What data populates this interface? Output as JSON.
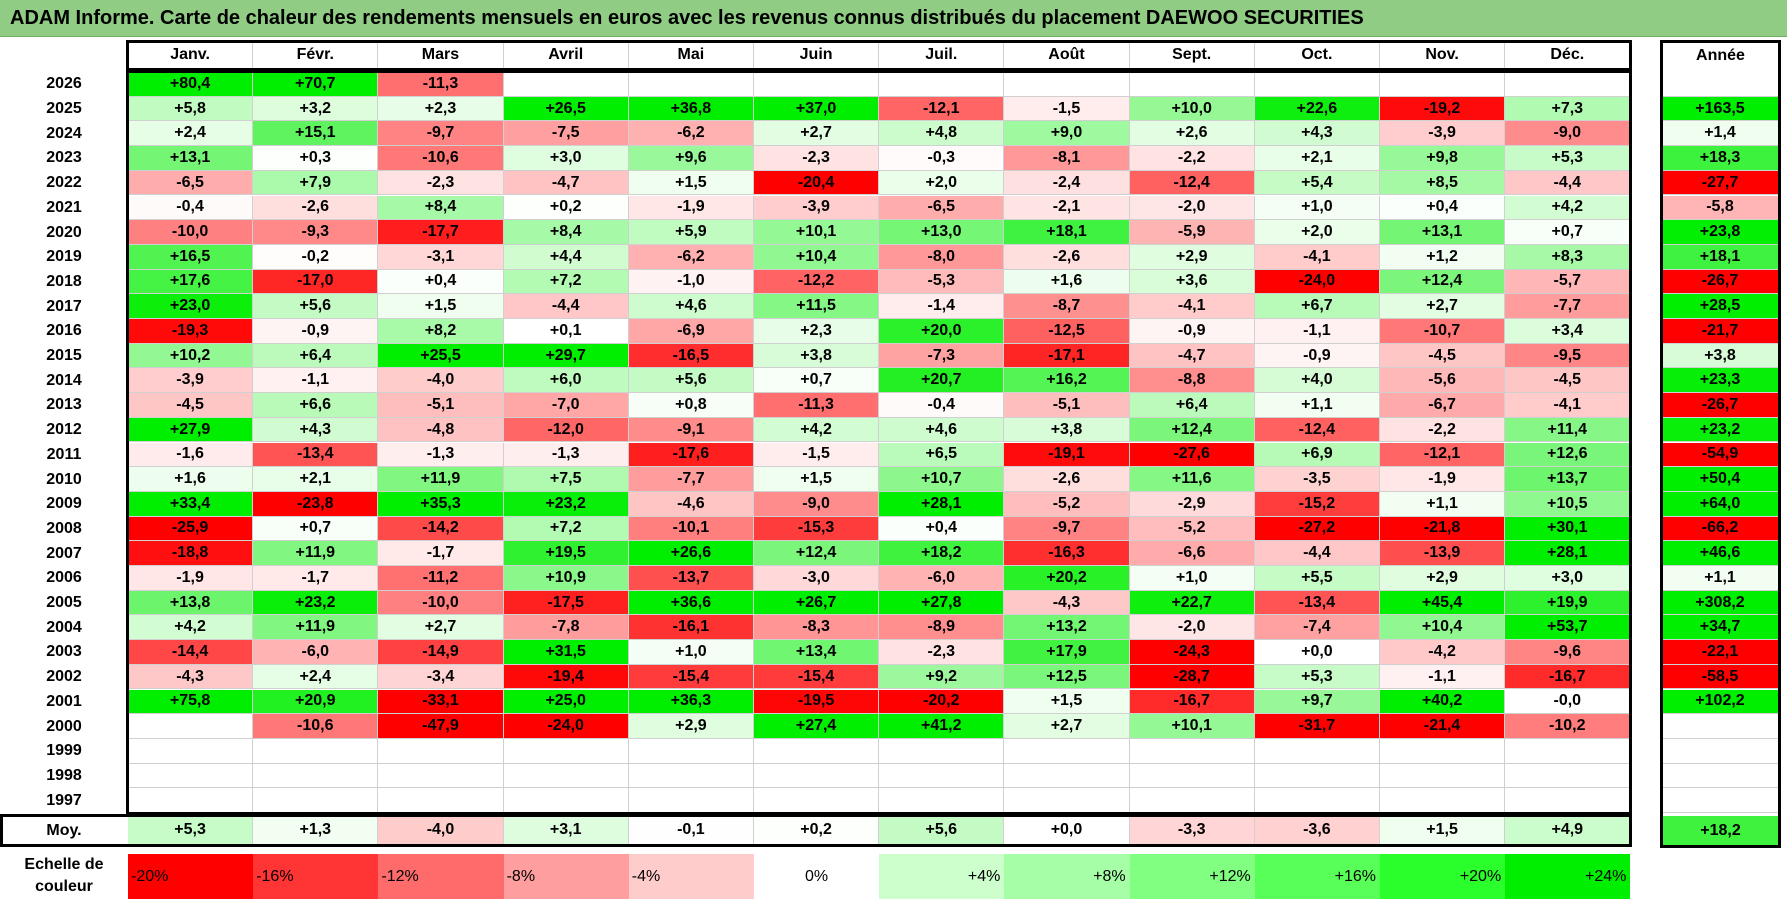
{
  "title": "ADAM Informe. Carte de chaleur des rendements mensuels en euros avec les revenus connus distribués du placement DAEWOO SECURITIES",
  "chart_data": {
    "type": "heatmap",
    "title": "ADAM Informe. Carte de chaleur des rendements mensuels en euros avec les revenus connus distribués du placement DAEWOO SECURITIES",
    "columns": [
      "Janv.",
      "Févr.",
      "Mars",
      "Avril",
      "Mai",
      "Juin",
      "Juil.",
      "Août",
      "Sept.",
      "Oct.",
      "Nov.",
      "Déc."
    ],
    "year_label": "Année",
    "rows": [
      {
        "year": "2026",
        "values": [
          "+80,4",
          "+70,7",
          "-11,3",
          "",
          "",
          "",
          "",
          "",
          "",
          "",
          "",
          ""
        ],
        "annual": ""
      },
      {
        "year": "2025",
        "values": [
          "+5,8",
          "+3,2",
          "+2,3",
          "+26,5",
          "+36,8",
          "+37,0",
          "-12,1",
          "-1,5",
          "+10,0",
          "+22,6",
          "-19,2",
          "+7,3"
        ],
        "annual": "+163,5"
      },
      {
        "year": "2024",
        "values": [
          "+2,4",
          "+15,1",
          "-9,7",
          "-7,5",
          "-6,2",
          "+2,7",
          "+4,8",
          "+9,0",
          "+2,6",
          "+4,3",
          "-3,9",
          "-9,0"
        ],
        "annual": "+1,4"
      },
      {
        "year": "2023",
        "values": [
          "+13,1",
          "+0,3",
          "-10,6",
          "+3,0",
          "+9,6",
          "-2,3",
          "-0,3",
          "-8,1",
          "-2,2",
          "+2,1",
          "+9,8",
          "+5,3"
        ],
        "annual": "+18,3"
      },
      {
        "year": "2022",
        "values": [
          "-6,5",
          "+7,9",
          "-2,3",
          "-4,7",
          "+1,5",
          "-20,4",
          "+2,0",
          "-2,4",
          "-12,4",
          "+5,4",
          "+8,5",
          "-4,4"
        ],
        "annual": "-27,7"
      },
      {
        "year": "2021",
        "values": [
          "-0,4",
          "-2,6",
          "+8,4",
          "+0,2",
          "-1,9",
          "-3,9",
          "-6,5",
          "-2,1",
          "-2,0",
          "+1,0",
          "+0,4",
          "+4,2"
        ],
        "annual": "-5,8"
      },
      {
        "year": "2020",
        "values": [
          "-10,0",
          "-9,3",
          "-17,7",
          "+8,4",
          "+5,9",
          "+10,1",
          "+13,0",
          "+18,1",
          "-5,9",
          "+2,0",
          "+13,1",
          "+0,7"
        ],
        "annual": "+23,8"
      },
      {
        "year": "2019",
        "values": [
          "+16,5",
          "-0,2",
          "-3,1",
          "+4,4",
          "-6,2",
          "+10,4",
          "-8,0",
          "-2,6",
          "+2,9",
          "-4,1",
          "+1,2",
          "+8,3"
        ],
        "annual": "+18,1"
      },
      {
        "year": "2018",
        "values": [
          "+17,6",
          "-17,0",
          "+0,4",
          "+7,2",
          "-1,0",
          "-12,2",
          "-5,3",
          "+1,6",
          "+3,6",
          "-24,0",
          "+12,4",
          "-5,7"
        ],
        "annual": "-26,7"
      },
      {
        "year": "2017",
        "values": [
          "+23,0",
          "+5,6",
          "+1,5",
          "-4,4",
          "+4,6",
          "+11,5",
          "-1,4",
          "-8,7",
          "-4,1",
          "+6,7",
          "+2,7",
          "-7,7"
        ],
        "annual": "+28,5"
      },
      {
        "year": "2016",
        "values": [
          "-19,3",
          "-0,9",
          "+8,2",
          "+0,1",
          "-6,9",
          "+2,3",
          "+20,0",
          "-12,5",
          "-0,9",
          "-1,1",
          "-10,7",
          "+3,4"
        ],
        "annual": "-21,7"
      },
      {
        "year": "2015",
        "values": [
          "+10,2",
          "+6,4",
          "+25,5",
          "+29,7",
          "-16,5",
          "+3,8",
          "-7,3",
          "-17,1",
          "-4,7",
          "-0,9",
          "-4,5",
          "-9,5"
        ],
        "annual": "+3,8"
      },
      {
        "year": "2014",
        "values": [
          "-3,9",
          "-1,1",
          "-4,0",
          "+6,0",
          "+5,6",
          "+0,7",
          "+20,7",
          "+16,2",
          "-8,8",
          "+4,0",
          "-5,6",
          "-4,5"
        ],
        "annual": "+23,3"
      },
      {
        "year": "2013",
        "values": [
          "-4,5",
          "+6,6",
          "-5,1",
          "-7,0",
          "+0,8",
          "-11,3",
          "-0,4",
          "-5,1",
          "+6,4",
          "+1,1",
          "-6,7",
          "-4,1"
        ],
        "annual": "-26,7"
      },
      {
        "year": "2012",
        "values": [
          "+27,9",
          "+4,3",
          "-4,8",
          "-12,0",
          "-9,1",
          "+4,2",
          "+4,6",
          "+3,8",
          "+12,4",
          "-12,4",
          "-2,2",
          "+11,4"
        ],
        "annual": "+23,2"
      },
      {
        "year": "2011",
        "values": [
          "-1,6",
          "-13,4",
          "-1,3",
          "-1,3",
          "-17,6",
          "-1,5",
          "+6,5",
          "-19,1",
          "-27,6",
          "+6,9",
          "-12,1",
          "+12,6"
        ],
        "annual": "-54,9"
      },
      {
        "year": "2010",
        "values": [
          "+1,6",
          "+2,1",
          "+11,9",
          "+7,5",
          "-7,7",
          "+1,5",
          "+10,7",
          "-2,6",
          "+11,6",
          "-3,5",
          "-1,9",
          "+13,7"
        ],
        "annual": "+50,4"
      },
      {
        "year": "2009",
        "values": [
          "+33,4",
          "-23,8",
          "+35,3",
          "+23,2",
          "-4,6",
          "-9,0",
          "+28,1",
          "-5,2",
          "-2,9",
          "-15,2",
          "+1,1",
          "+10,5"
        ],
        "annual": "+64,0"
      },
      {
        "year": "2008",
        "values": [
          "-25,9",
          "+0,7",
          "-14,2",
          "+7,2",
          "-10,1",
          "-15,3",
          "+0,4",
          "-9,7",
          "-5,2",
          "-27,2",
          "-21,8",
          "+30,1"
        ],
        "annual": "-66,2"
      },
      {
        "year": "2007",
        "values": [
          "-18,8",
          "+11,9",
          "-1,7",
          "+19,5",
          "+26,6",
          "+12,4",
          "+18,2",
          "-16,3",
          "-6,6",
          "-4,4",
          "-13,9",
          "+28,1"
        ],
        "annual": "+46,6"
      },
      {
        "year": "2006",
        "values": [
          "-1,9",
          "-1,7",
          "-11,2",
          "+10,9",
          "-13,7",
          "-3,0",
          "-6,0",
          "+20,2",
          "+1,0",
          "+5,5",
          "+2,9",
          "+3,0"
        ],
        "annual": "+1,1"
      },
      {
        "year": "2005",
        "values": [
          "+13,8",
          "+23,2",
          "-10,0",
          "-17,5",
          "+36,6",
          "+26,7",
          "+27,8",
          "-4,3",
          "+22,7",
          "-13,4",
          "+45,4",
          "+19,9"
        ],
        "annual": "+308,2"
      },
      {
        "year": "2004",
        "values": [
          "+4,2",
          "+11,9",
          "+2,7",
          "-7,8",
          "-16,1",
          "-8,3",
          "-8,9",
          "+13,2",
          "-2,0",
          "-7,4",
          "+10,4",
          "+53,7"
        ],
        "annual": "+34,7"
      },
      {
        "year": "2003",
        "values": [
          "-14,4",
          "-6,0",
          "-14,9",
          "+31,5",
          "+1,0",
          "+13,4",
          "-2,3",
          "+17,9",
          "-24,3",
          "+0,0",
          "-4,2",
          "-9,6"
        ],
        "annual": "-22,1"
      },
      {
        "year": "2002",
        "values": [
          "-4,3",
          "+2,4",
          "-3,4",
          "-19,4",
          "-15,4",
          "-15,4",
          "+9,2",
          "+12,5",
          "-28,7",
          "+5,3",
          "-1,1",
          "-16,7"
        ],
        "annual": "-58,5"
      },
      {
        "year": "2001",
        "values": [
          "+75,8",
          "+20,9",
          "-33,1",
          "+25,0",
          "+36,3",
          "-19,5",
          "-20,2",
          "+1,5",
          "-16,7",
          "+9,7",
          "+40,2",
          "-0,0"
        ],
        "annual": "+102,2"
      },
      {
        "year": "2000",
        "values": [
          "",
          "-10,6",
          "-47,9",
          "-24,0",
          "+2,9",
          "+27,4",
          "+41,2",
          "+2,7",
          "+10,1",
          "-31,7",
          "-21,4",
          "-10,2"
        ],
        "annual": ""
      },
      {
        "year": "1999",
        "values": [
          "",
          "",
          "",
          "",
          "",
          "",
          "",
          "",
          "",
          "",
          "",
          ""
        ],
        "annual": ""
      },
      {
        "year": "1998",
        "values": [
          "",
          "",
          "",
          "",
          "",
          "",
          "",
          "",
          "",
          "",
          "",
          ""
        ],
        "annual": ""
      },
      {
        "year": "1997",
        "values": [
          "",
          "",
          "",
          "",
          "",
          "",
          "",
          "",
          "",
          "",
          "",
          ""
        ],
        "annual": ""
      }
    ],
    "average": {
      "label": "Moy.",
      "values": [
        "+5,3",
        "+1,3",
        "-4,0",
        "+3,1",
        "-0,1",
        "+0,2",
        "+5,6",
        "+0,0",
        "-3,3",
        "-3,6",
        "+1,5",
        "+4,9"
      ],
      "annual": "+18,2"
    },
    "color_scale": {
      "label": "Echelle de couleur",
      "stops": [
        "-20%",
        "-16%",
        "-12%",
        "-8%",
        "-4%",
        "0%",
        "+4%",
        "+8%",
        "+12%",
        "+16%",
        "+20%",
        "+24%"
      ],
      "colors": [
        "#ff0000",
        "#ff3535",
        "#ff6b6b",
        "#ff9e9e",
        "#ffcccc",
        "#ffffff",
        "#ccffcc",
        "#a6ffa6",
        "#80ff80",
        "#59ff59",
        "#2bff2b",
        "#00ee00"
      ]
    }
  }
}
